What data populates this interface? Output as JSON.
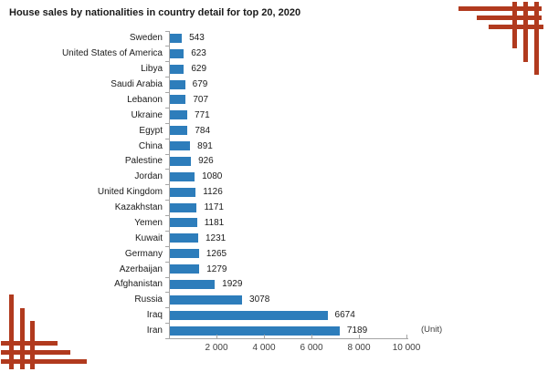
{
  "title": "House sales by nationalities in country detail for top 20, 2020",
  "unit_label": "(Unit)",
  "colors": {
    "bar": "#2d7dbb",
    "accent_red": "#b13a1e",
    "axis": "#a6a6a6",
    "text": "#1a1a1a",
    "tick_text": "#404040"
  },
  "chart_data": {
    "type": "bar",
    "orientation": "horizontal",
    "title": "House sales by nationalities in country detail for top 20, 2020",
    "categories": [
      "Sweden",
      "United States of America",
      "Libya",
      "Saudi Arabia",
      "Lebanon",
      "Ukraine",
      "Egypt",
      "China",
      "Palestine",
      "Jordan",
      "United Kingdom",
      "Kazakhstan",
      "Yemen",
      "Kuwait",
      "Germany",
      "Azerbaijan",
      "Afghanistan",
      "Russia",
      "Iraq",
      "Iran"
    ],
    "values": [
      543,
      623,
      629,
      679,
      707,
      771,
      784,
      891,
      926,
      1080,
      1126,
      1171,
      1181,
      1231,
      1265,
      1279,
      1929,
      3078,
      6674,
      7189
    ],
    "xlabel": "(Unit)",
    "x_ticks": [
      2000,
      4000,
      6000,
      8000,
      10000
    ],
    "x_tick_labels": [
      "2 000",
      "4 000",
      "6 000",
      "8 000",
      "10 000"
    ],
    "xlim": [
      0,
      10000
    ],
    "value_labels_shown": true,
    "legend": null,
    "grid": false
  }
}
